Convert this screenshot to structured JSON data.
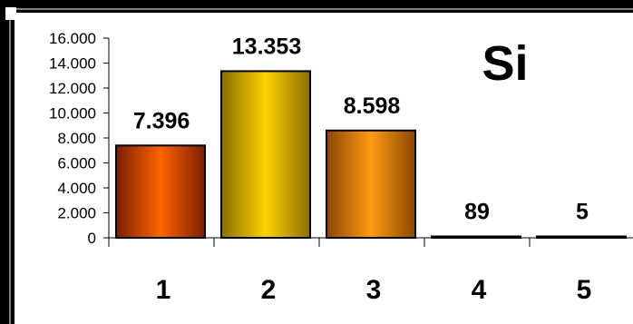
{
  "chart_data": {
    "type": "bar",
    "title": "Si",
    "categories": [
      "1",
      "2",
      "3",
      "4",
      "5"
    ],
    "values": [
      7396,
      13353,
      8598,
      89,
      5
    ],
    "value_labels": [
      "7.396",
      "13.353",
      "8.598",
      "89",
      "5"
    ],
    "ylim": [
      0,
      16000
    ],
    "yticks": [
      0,
      2000,
      4000,
      6000,
      8000,
      10000,
      12000,
      14000,
      16000
    ],
    "ytick_labels": [
      "0",
      "2.000",
      "4.000",
      "6.000",
      "8.000",
      "10.000",
      "12.000",
      "14.000",
      "16.000"
    ],
    "xlabel": "",
    "ylabel": "",
    "grid": false,
    "legend": "none",
    "bar_colors": [
      [
        "#7a1e00",
        "#ff6400",
        "#7a1e00"
      ],
      [
        "#8a6e00",
        "#ffd200",
        "#8a6e00"
      ],
      [
        "#8a4600",
        "#ff9a14",
        "#8a4600"
      ],
      [
        "#5a2a00",
        "#c86400",
        "#5a2a00"
      ],
      [
        "#5a2a00",
        "#c86400",
        "#5a2a00"
      ]
    ]
  }
}
